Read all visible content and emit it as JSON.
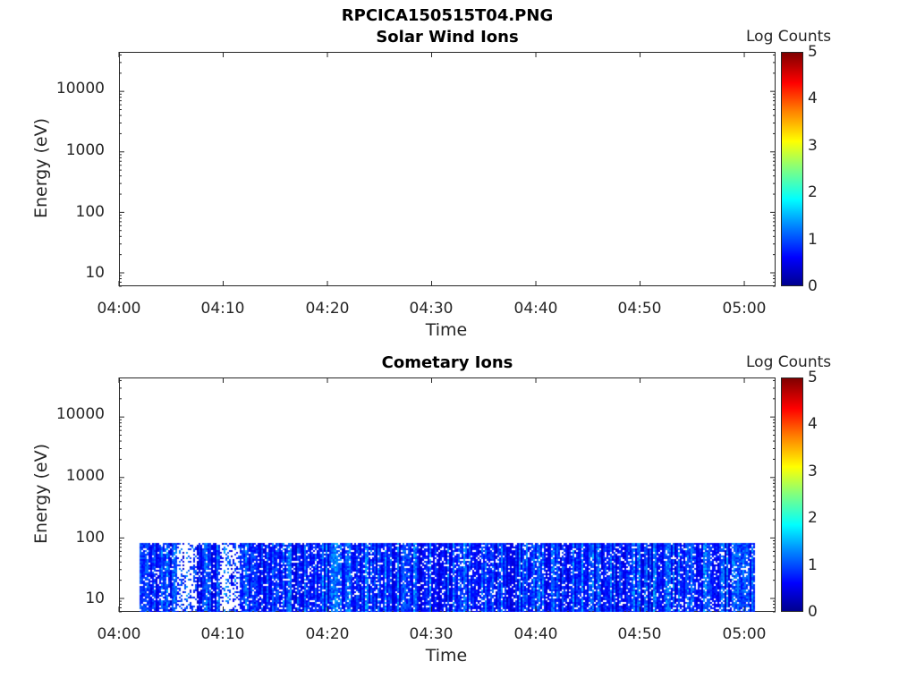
{
  "figure_title": "RPCICA150515T04.PNG",
  "chart_data": [
    {
      "type": "heatmap",
      "title": "Solar Wind Ions",
      "xlabel": "Time",
      "ylabel": "Energy (eV)",
      "x_ticks": [
        "04:00",
        "04:10",
        "04:20",
        "04:30",
        "04:40",
        "04:50",
        "05:00"
      ],
      "x_range_min": [
        0,
        63
      ],
      "y_ticks": [
        "10",
        "100",
        "1000",
        "10000"
      ],
      "y_scale": "log",
      "y_range": [
        6,
        45000
      ],
      "colorbar_label": "Log Counts",
      "colorbar_ticks": [
        "0",
        "1",
        "2",
        "3",
        "4",
        "5"
      ],
      "colorbar_range": [
        0,
        5
      ],
      "data_present": false
    },
    {
      "type": "heatmap",
      "title": "Cometary Ions",
      "xlabel": "Time",
      "ylabel": "Energy (eV)",
      "x_ticks": [
        "04:00",
        "04:10",
        "04:20",
        "04:30",
        "04:40",
        "04:50",
        "05:00"
      ],
      "x_range_min": [
        0,
        63
      ],
      "y_ticks": [
        "10",
        "100",
        "1000",
        "10000"
      ],
      "y_scale": "log",
      "y_range": [
        6,
        45000
      ],
      "colorbar_label": "Log Counts",
      "colorbar_ticks": [
        "0",
        "1",
        "2",
        "3",
        "4",
        "5"
      ],
      "colorbar_range": [
        0,
        5
      ],
      "data_present": true,
      "data_time_range": [
        "04:02",
        "05:01"
      ],
      "data_energy_range_eV": [
        6,
        80
      ],
      "typical_log_counts": [
        0,
        1.5
      ]
    }
  ]
}
